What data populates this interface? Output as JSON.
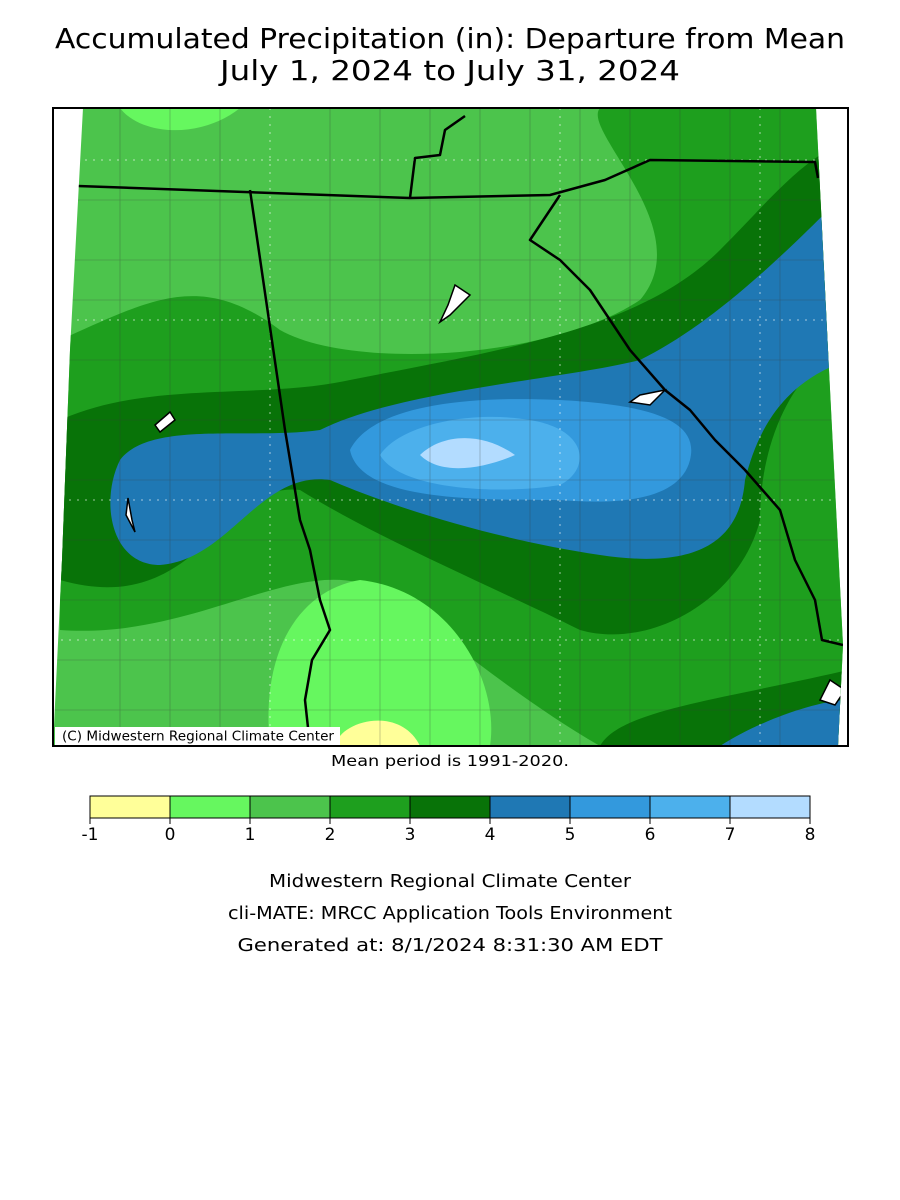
{
  "title": [
    "Accumulated Precipitation (in): Departure from Mean",
    "July 1, 2024 to July 31, 2024"
  ],
  "map": {
    "credit": "(C) Midwestern Regional Climate Center"
  },
  "note": "Mean period is 1991-2020.",
  "legend": {
    "bins": [
      -1,
      0,
      1,
      2,
      3,
      4,
      5,
      6,
      7,
      8
    ],
    "colors": [
      "#ffff99",
      "#66f75f",
      "#4cc44c",
      "#1e9f1e",
      "#087308",
      "#1f78b4",
      "#3399dd",
      "#4cb0ec",
      "#b3dcff"
    ]
  },
  "footer": [
    "Midwestern Regional Climate Center",
    "cli-MATE: MRCC Application Tools Environment",
    "Generated at: 8/1/2024 8:31:30 AM EDT"
  ]
}
